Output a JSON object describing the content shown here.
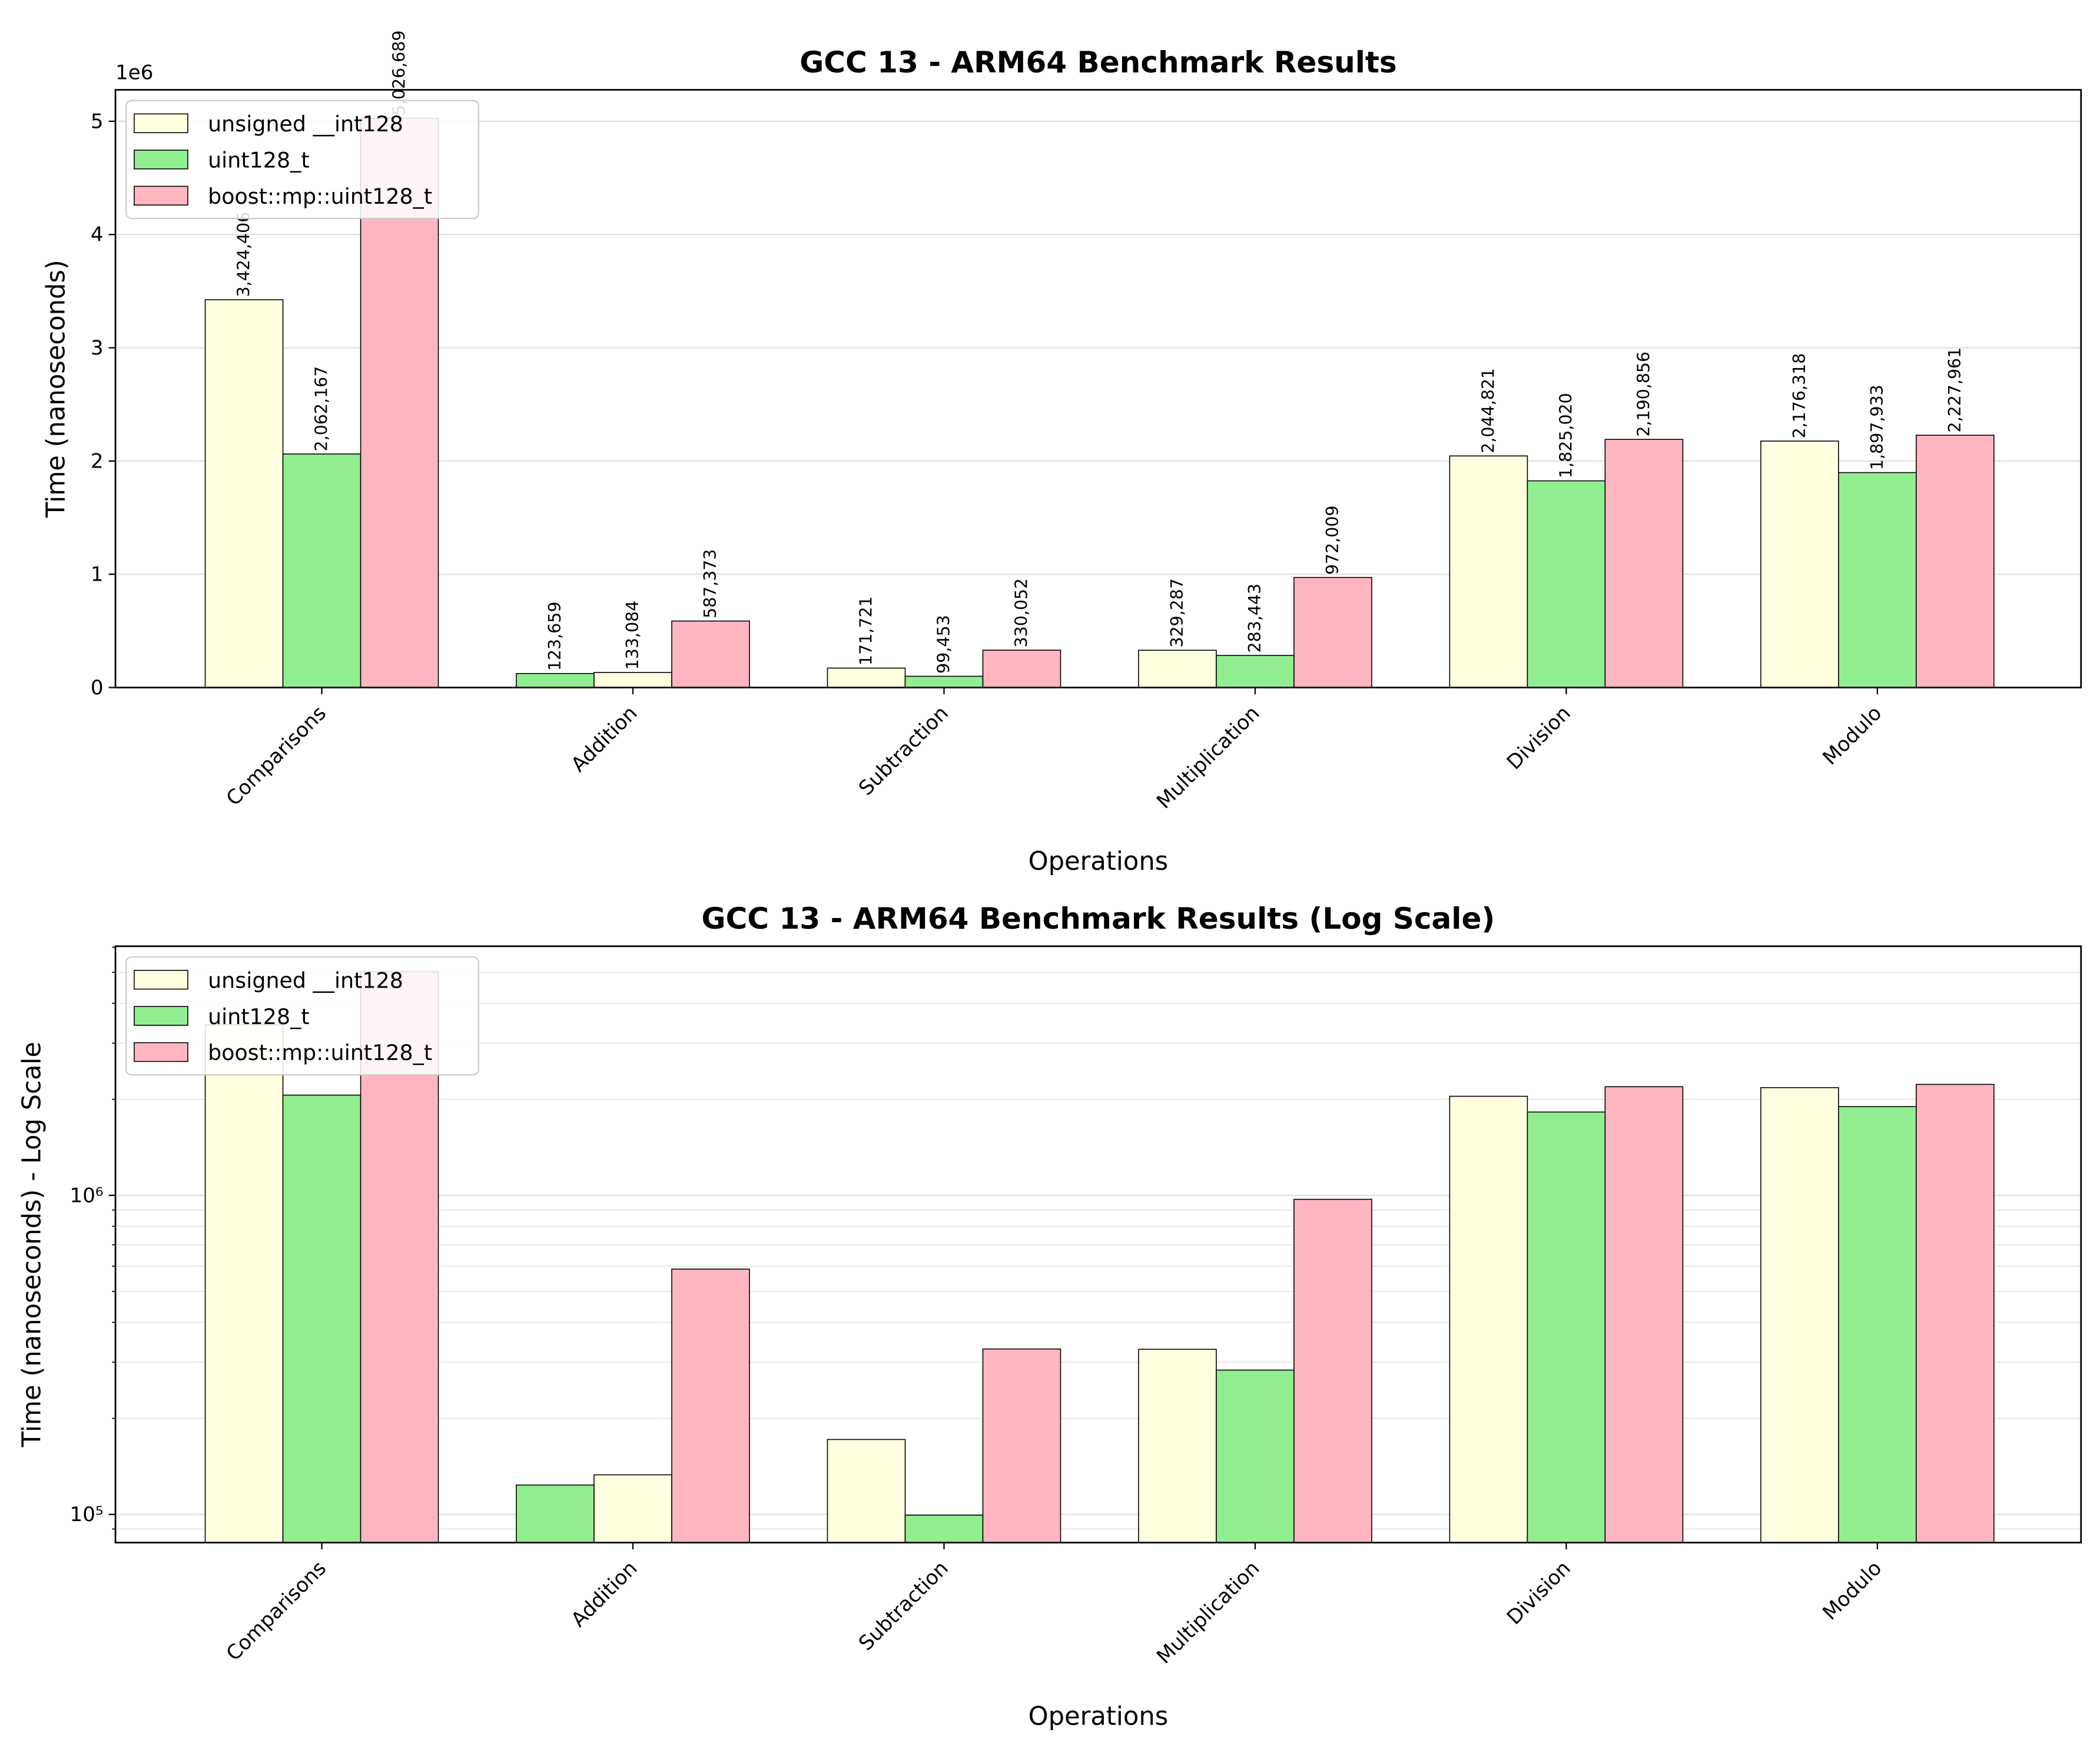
{
  "chart_data": [
    {
      "type": "bar",
      "title": "GCC 13 - ARM64 Benchmark Results",
      "x_label": "Operations",
      "y_label": "Time (nanoseconds)",
      "y_offset_label": "1e6",
      "categories": [
        "Comparisons",
        "Addition",
        "Subtraction",
        "Multiplication",
        "Division",
        "Modulo"
      ],
      "series": [
        {
          "name": "unsigned __int128",
          "color": "#ffffe0",
          "bar_colors": [
            "#ffffe0",
            "#90ee90",
            "#ffffe0",
            "#ffffe0",
            "#ffffe0",
            "#ffffe0"
          ],
          "values": [
            3424406,
            123659,
            171721,
            329287,
            2044821,
            2176318
          ],
          "value_labels": [
            "3,424,406",
            "123,659",
            "171,721",
            "329,287",
            "2,044,821",
            "2,176,318"
          ]
        },
        {
          "name": "uint128_t",
          "color": "#90ee90",
          "bar_colors": [
            "#90ee90",
            "#ffffe0",
            "#90ee90",
            "#90ee90",
            "#90ee90",
            "#90ee90"
          ],
          "values": [
            2062167,
            133084,
            99453,
            283443,
            1825020,
            1897933
          ],
          "value_labels": [
            "2,062,167",
            "133,084",
            "99,453",
            "283,443",
            "1,825,020",
            "1,897,933"
          ]
        },
        {
          "name": "boost::mp::uint128_t",
          "color": "#ffb6c1",
          "bar_colors": [
            "#ffb6c1",
            "#ffb6c1",
            "#ffb6c1",
            "#ffb6c1",
            "#ffb6c1",
            "#ffb6c1"
          ],
          "values": [
            5026689,
            587373,
            330052,
            972009,
            2190856,
            2227961
          ],
          "value_labels": [
            "5,026,689",
            "587,373",
            "330,052",
            "972,009",
            "2,190,856",
            "2,227,961"
          ]
        }
      ],
      "ylim": [
        0,
        5278023
      ],
      "yticks": [
        0,
        {
          "value": 1000000,
          "label": "1"
        },
        {
          "value": 2000000,
          "label": "2"
        },
        {
          "value": 3000000,
          "label": "3"
        },
        {
          "value": 4000000,
          "label": "4"
        },
        {
          "value": 5000000,
          "label": "5"
        }
      ],
      "log_scale": false,
      "grid": true,
      "legend": "upper left"
    },
    {
      "type": "bar",
      "title": "GCC 13 - ARM64 Benchmark Results (Log Scale)",
      "x_label": "Operations",
      "y_label": "Time (nanoseconds) - Log Scale",
      "categories": [
        "Comparisons",
        "Addition",
        "Subtraction",
        "Multiplication",
        "Division",
        "Modulo"
      ],
      "series": [
        {
          "name": "unsigned __int128",
          "color": "#ffffe0",
          "bar_colors": [
            "#ffffe0",
            "#90ee90",
            "#ffffe0",
            "#ffffe0",
            "#ffffe0",
            "#ffffe0"
          ],
          "values": [
            3424406,
            123659,
            171721,
            329287,
            2044821,
            2176318
          ]
        },
        {
          "name": "uint128_t",
          "color": "#90ee90",
          "bar_colors": [
            "#90ee90",
            "#ffffe0",
            "#90ee90",
            "#90ee90",
            "#90ee90",
            "#90ee90"
          ],
          "values": [
            2062167,
            133084,
            99453,
            283443,
            1825020,
            1897933
          ]
        },
        {
          "name": "boost::mp::uint128_t",
          "color": "#ffb6c1",
          "bar_colors": [
            "#ffb6c1",
            "#ffb6c1",
            "#ffb6c1",
            "#ffb6c1",
            "#ffb6c1",
            "#ffb6c1"
          ],
          "values": [
            5026689,
            587373,
            330052,
            972009,
            2190856,
            2227961
          ]
        }
      ],
      "ylim": [
        81600,
        6040000
      ],
      "yticks": [
        {
          "value": 100000,
          "label": "10⁵"
        },
        {
          "value": 1000000,
          "label": "10⁶"
        }
      ],
      "minor_yticks": [
        90000,
        200000,
        300000,
        400000,
        500000,
        600000,
        700000,
        800000,
        900000,
        2000000,
        3000000,
        4000000,
        5000000,
        6000000
      ],
      "log_scale": true,
      "grid": true,
      "legend": "upper left"
    }
  ]
}
